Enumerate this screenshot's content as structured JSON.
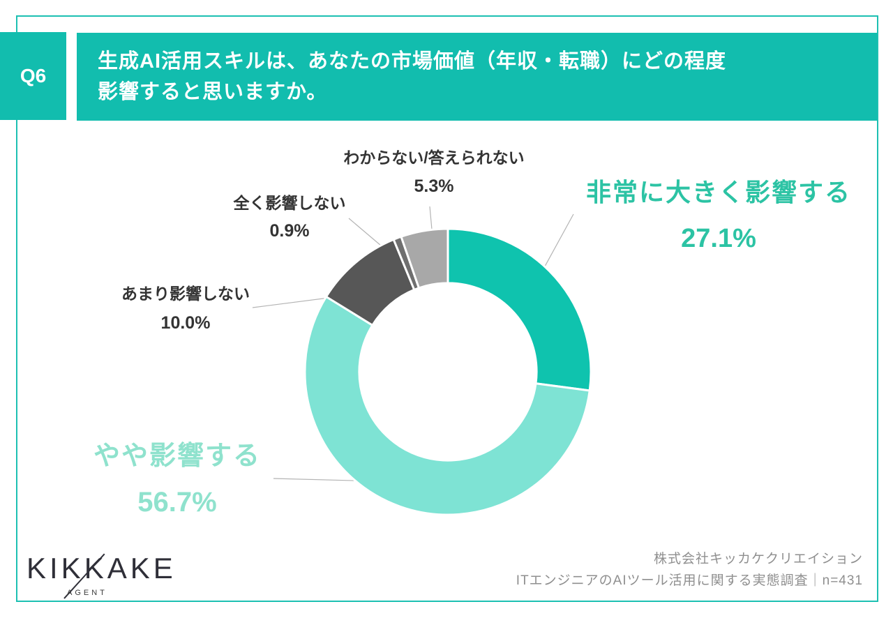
{
  "header": {
    "question_number": "Q6",
    "title_line1": "生成AI活用スキルは、あなたの市場価値（年収・転職）にどの程度",
    "title_line2": "影響すると思いますか。"
  },
  "chart_data": {
    "type": "pie",
    "subtype": "donut",
    "title": "生成AI活用スキルは、あなたの市場価値（年収・転職）にどの程度影響すると思いますか。",
    "start_angle": "12-oclock-clockwise",
    "hole_ratio": 0.62,
    "segments": [
      {
        "label": "非常に大きく影響する",
        "value": 27.1,
        "display": "27.1%",
        "color": "#0fc3ae",
        "label_color": "#2cc3a4"
      },
      {
        "label": "やや影響する",
        "value": 56.7,
        "display": "56.7%",
        "color": "#7ee3d4",
        "label_color": "#8fe2cd"
      },
      {
        "label": "あまり影響しない",
        "value": 10.0,
        "display": "10.0%",
        "color": "#575757",
        "label_color": "#333333"
      },
      {
        "label": "全く影響しない",
        "value": 0.9,
        "display": "0.9%",
        "color": "#6f6f6f",
        "label_color": "#333333"
      },
      {
        "label": "わからない/答えられない",
        "value": 5.3,
        "display": "5.3%",
        "color": "#a8a8a8",
        "label_color": "#333333"
      }
    ]
  },
  "footer": {
    "logo_text": "KIKKAKE",
    "logo_subtext": "AGENT",
    "source_line1": "株式会社キッカケクリエイション",
    "source_line2": "ITエンジニアのAIツール活用に関する実態調査｜n=431"
  },
  "colors": {
    "accent_teal": "#12bdae",
    "frame_border": "#1cc0b2",
    "leader_line": "#b3b3b3"
  }
}
